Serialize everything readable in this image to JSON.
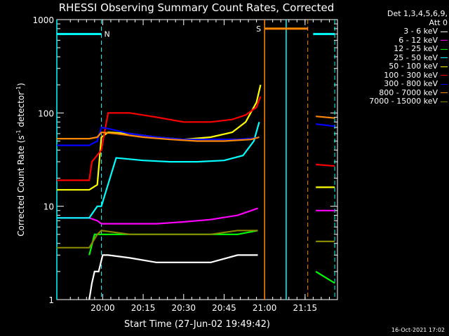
{
  "chart_data": {
    "type": "line",
    "title": "RHESSI Observing Summary Count Rates, Corrected",
    "xlabel": "Start Time (27-Jun-02 19:49:42)",
    "ylabel_main": "Corrected Count Rate (s",
    "ylabel_sup1": "-1",
    "ylabel_mid": " detector",
    "ylabel_sup2": "-1",
    "ylabel_end": ")",
    "ylim": [
      1,
      1000
    ],
    "yscale": "log",
    "xlim_minutes": [
      -7,
      97
    ],
    "x_ticks": [
      {
        "label": "20:00",
        "min": 10
      },
      {
        "label": "20:15",
        "min": 25
      },
      {
        "label": "20:30",
        "min": 40
      },
      {
        "label": "20:45",
        "min": 55
      },
      {
        "label": "21:00",
        "min": 70
      },
      {
        "label": "21:15",
        "min": 85
      }
    ],
    "y_ticks": [
      {
        "label": "1",
        "value": 1
      },
      {
        "label": "10",
        "value": 10
      },
      {
        "label": "100",
        "value": 100
      },
      {
        "label": "1000",
        "value": 1000
      }
    ],
    "annotations": [
      {
        "text": "N",
        "color": "#00ffff"
      },
      {
        "text": "S",
        "color": "#ff8800"
      }
    ],
    "night_bar": {
      "color": "#00ffff",
      "segments_min": [
        [
          -7,
          9.5
        ],
        [
          88,
          96
        ]
      ],
      "level": 700,
      "dashed_at_min": [
        9.5,
        96
      ],
      "solid_at_min": [
        -7,
        78
      ]
    },
    "saa_bar": {
      "color": "#ff8800",
      "segments_min": [
        [
          70,
          86
        ]
      ],
      "level": 800,
      "solid_at_min": [
        70
      ],
      "dashed_at_min": [
        86
      ]
    },
    "legend_head": [
      "Det 1,3,4,5,6,9,",
      "Att 0"
    ],
    "series": [
      {
        "name": "3 - 6 keV",
        "color": "#ffffff",
        "x": [
          5,
          6,
          7,
          8.5,
          10,
          12,
          20,
          30,
          40,
          50,
          60,
          67.5
        ],
        "y": [
          1.0,
          1.5,
          2.0,
          2.0,
          3.0,
          3.0,
          2.8,
          2.5,
          2.5,
          2.5,
          3.0,
          3.0
        ]
      },
      {
        "name": "6 - 12 keV",
        "color": "#ff00ff",
        "x": [
          -7,
          5,
          8,
          9.5,
          20,
          30,
          40,
          50,
          60,
          67.5,
          89,
          96
        ],
        "y": [
          7.5,
          7.5,
          7.0,
          6.5,
          6.5,
          6.5,
          6.8,
          7.2,
          8.0,
          9.5,
          9.0,
          9.0
        ]
      },
      {
        "name": "12 - 25 keV",
        "color": "#00ff00",
        "x": [
          5,
          7,
          9.5,
          20,
          30,
          40,
          50,
          60,
          67.5,
          89,
          96
        ],
        "y": [
          3.0,
          5.0,
          5.0,
          5.0,
          5.0,
          5.0,
          5.0,
          5.0,
          5.5,
          2.0,
          1.5
        ]
      },
      {
        "name": "25 - 50 keV",
        "color": "#00ffff",
        "x": [
          -7,
          5,
          8,
          9.5,
          15,
          25,
          35,
          45,
          55,
          62,
          66,
          68
        ],
        "y": [
          7.5,
          7.5,
          10,
          10,
          33,
          31,
          30,
          30,
          31,
          35,
          50,
          80
        ]
      },
      {
        "name": "50 - 100 keV",
        "color": "#ffff00",
        "x": [
          -7,
          5,
          8,
          9.5,
          12,
          20,
          30,
          40,
          50,
          58,
          63,
          67,
          68.5,
          89,
          96
        ],
        "y": [
          15,
          15,
          17,
          55,
          62,
          60,
          55,
          52,
          55,
          62,
          80,
          130,
          200,
          16,
          16
        ]
      },
      {
        "name": "100 - 300 keV",
        "color": "#ff0000",
        "x": [
          -7,
          5,
          6,
          9.5,
          12,
          20,
          30,
          40,
          50,
          58,
          63,
          67,
          68.5,
          89,
          96
        ],
        "y": [
          19,
          19,
          30,
          40,
          100,
          100,
          90,
          80,
          80,
          85,
          95,
          115,
          150,
          28,
          27
        ]
      },
      {
        "name": "300 - 800 keV",
        "color": "#0000ff",
        "x": [
          -7,
          5,
          8,
          9.5,
          12,
          20,
          30,
          40,
          50,
          60,
          67.5,
          89,
          96
        ],
        "y": [
          45,
          45,
          50,
          70,
          68,
          60,
          55,
          52,
          52,
          52,
          54,
          76,
          72
        ]
      },
      {
        "name": "800 - 7000 keV",
        "color": "#ff8800",
        "x": [
          -7,
          5,
          8,
          9.5,
          15,
          25,
          35,
          45,
          55,
          65,
          68,
          89,
          96
        ],
        "y": [
          53,
          53,
          55,
          62,
          60,
          55,
          52,
          50,
          50,
          52,
          55,
          92,
          88
        ]
      },
      {
        "name": "7000 - 15000 keV",
        "color": "#888800",
        "x": [
          -7,
          5,
          8,
          9.5,
          20,
          30,
          40,
          50,
          60,
          67.5,
          89,
          96
        ],
        "y": [
          3.6,
          3.6,
          5.0,
          5.5,
          5.0,
          5.0,
          5.0,
          5.0,
          5.5,
          5.5,
          4.2,
          4.2
        ]
      }
    ]
  },
  "footer": "16-Oct-2021 17:02"
}
